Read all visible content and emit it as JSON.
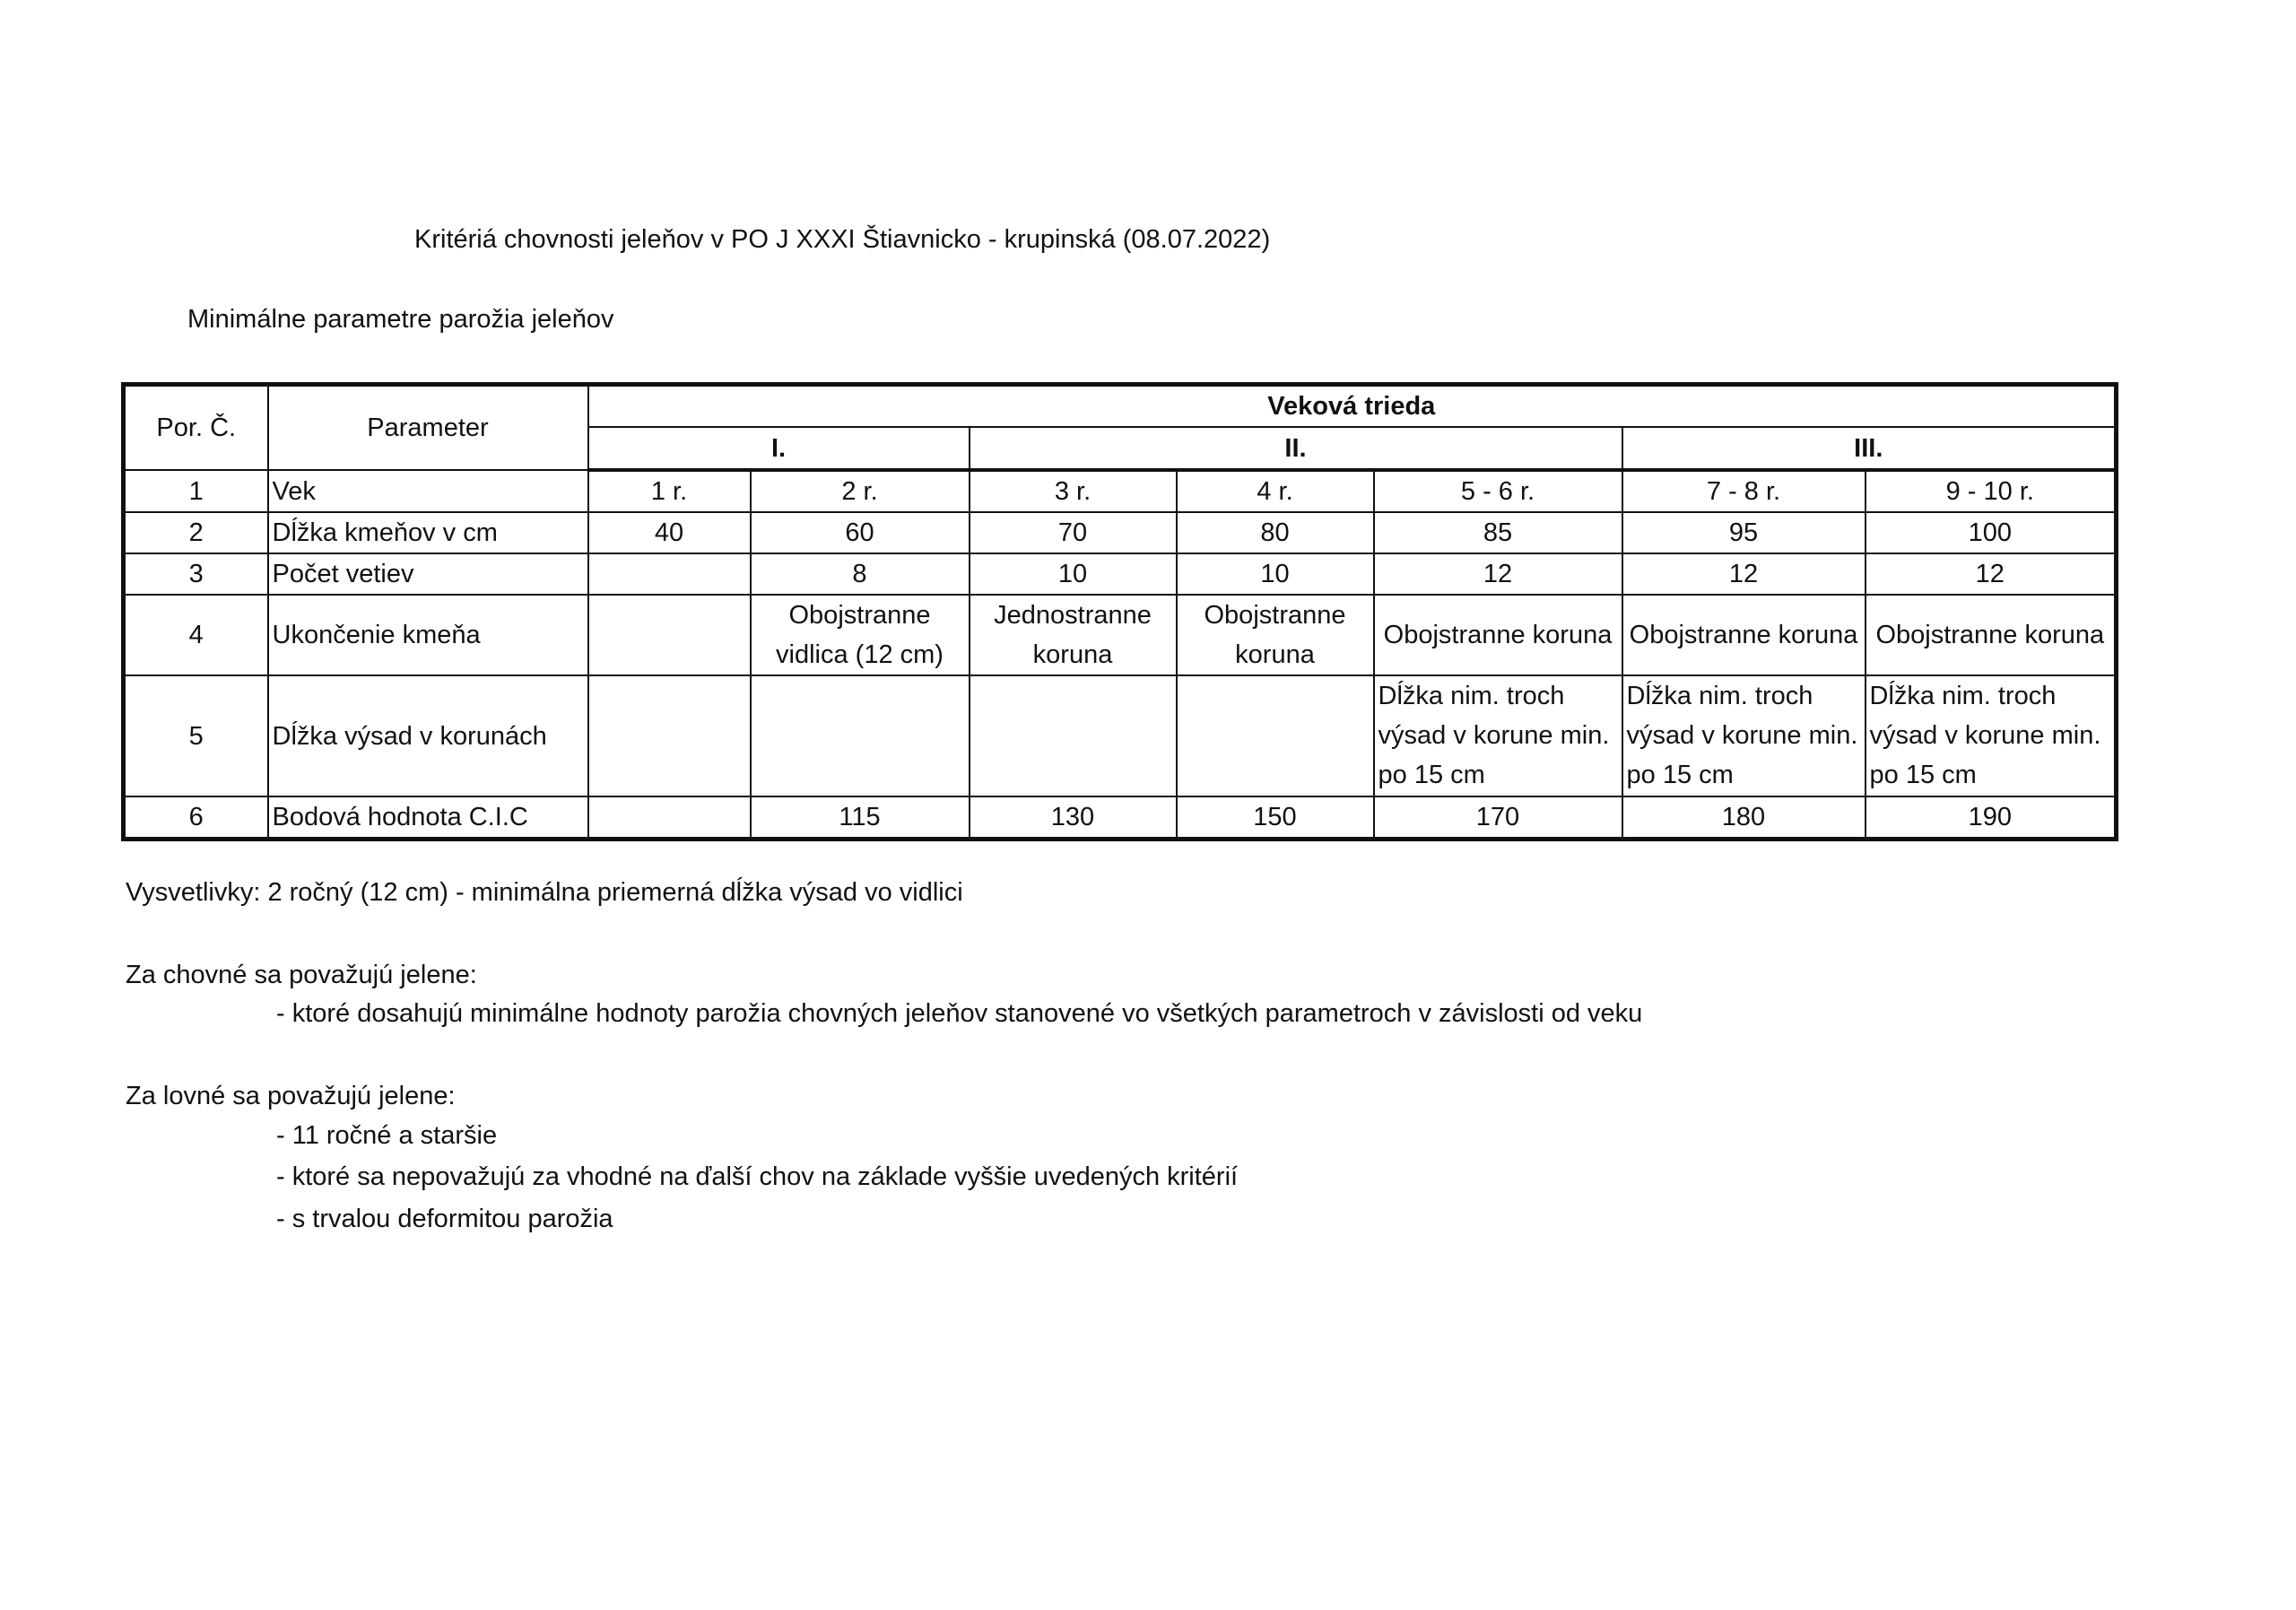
{
  "title": "Kritériá chovnosti jeleňov v PO J XXXI Štiavnicko - krupinská (08.07.2022)",
  "subtitle": "Minimálne parametre parožia jeleňov",
  "table": {
    "header": {
      "por": "Por. Č.",
      "parameter": "Parameter",
      "group": "Veková trieda",
      "classes": [
        "I.",
        "II.",
        "III."
      ]
    },
    "rows": [
      {
        "no": "1",
        "param": "Vek",
        "cells": [
          "1 r.",
          "2 r.",
          "3 r.",
          "4 r.",
          "5 - 6 r.",
          "7 - 8 r.",
          "9 - 10 r."
        ]
      },
      {
        "no": "2",
        "param": "Dĺžka kmeňov v cm",
        "cells": [
          "40",
          "60",
          "70",
          "80",
          "85",
          "95",
          "100"
        ]
      },
      {
        "no": "3",
        "param": "Počet vetiev",
        "cells": [
          "",
          "8",
          "10",
          "10",
          "12",
          "12",
          "12"
        ]
      },
      {
        "no": "4",
        "param": "Ukončenie kmeňa",
        "cells": [
          "",
          "Obojstranne vidlica (12 cm)",
          "Jednostranne koruna",
          "Obojstranne koruna",
          "Obojstranne koruna",
          "Obojstranne koruna",
          "Obojstranne koruna"
        ]
      },
      {
        "no": "5",
        "param": "Dĺžka výsad v korunách",
        "cells": [
          "",
          "",
          "",
          "",
          "Dĺžka nim. troch výsad v korune min. po 15 cm",
          "Dĺžka nim. troch výsad v korune min. po 15 cm",
          "Dĺžka nim. troch výsad v korune min. po 15 cm"
        ]
      },
      {
        "no": "6",
        "param": "Bodová hodnota C.I.C",
        "cells": [
          "",
          "115",
          "130",
          "150",
          "170",
          "180",
          "190"
        ]
      }
    ]
  },
  "notes": {
    "legend": "Vysvetlivky: 2 ročný (12 cm) - minimálna priemerná dĺžka výsad vo vidlici",
    "breeding_heading": "Za chovné sa považujú jelene:",
    "breeding_items": [
      "- ktoré dosahujú minimálne hodnoty parožia chovných jeleňov stanovené vo všetkých parametroch v závislosti od veku"
    ],
    "hunting_heading": "Za lovné sa považujú jelene:",
    "hunting_items": [
      "- 11 ročné a staršie",
      "- ktoré sa nepovažujú za vhodné na ďalší chov na základe vyššie uvedených kritérií",
      "- s trvalou deformitou parožia"
    ]
  }
}
